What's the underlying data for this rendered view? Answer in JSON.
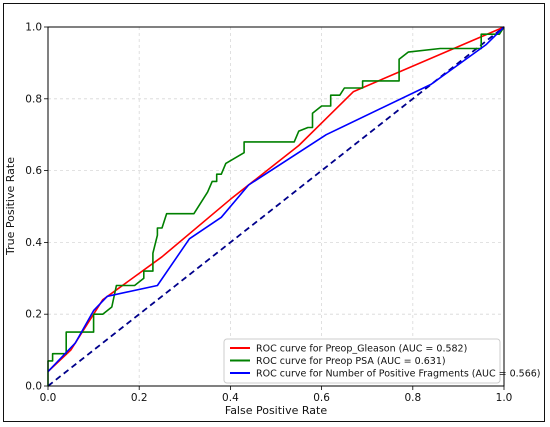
{
  "chart_data": {
    "type": "line",
    "title": "",
    "xlabel": "False Positive Rate",
    "ylabel": "True Positive Rate",
    "xlim": [
      0.0,
      1.0
    ],
    "ylim": [
      0.0,
      1.0
    ],
    "xticks": [
      "0.0",
      "0.2",
      "0.4",
      "0.6",
      "0.8",
      "1.0"
    ],
    "yticks": [
      "0.0",
      "0.2",
      "0.4",
      "0.6",
      "0.8",
      "1.0"
    ],
    "grid": true,
    "legend_position": "lower-right",
    "diagonal": {
      "x": [
        0.0,
        1.0
      ],
      "y": [
        0.0,
        1.0
      ],
      "color": "#00008b",
      "style": "dashed"
    },
    "series": [
      {
        "name": "ROC curve for Preop_Gleason (AUC = 0.582)",
        "color": "#ff0000",
        "points": [
          [
            0.0,
            0.04
          ],
          [
            0.05,
            0.1
          ],
          [
            0.12,
            0.24
          ],
          [
            0.25,
            0.36
          ],
          [
            0.4,
            0.52
          ],
          [
            0.55,
            0.67
          ],
          [
            0.67,
            0.82
          ],
          [
            1.0,
            1.0
          ]
        ]
      },
      {
        "name": "ROC curve for Preop PSA (AUC = 0.631)",
        "color": "#008000",
        "points": [
          [
            0.0,
            0.0
          ],
          [
            0.0,
            0.07
          ],
          [
            0.01,
            0.07
          ],
          [
            0.01,
            0.09
          ],
          [
            0.04,
            0.09
          ],
          [
            0.04,
            0.15
          ],
          [
            0.1,
            0.15
          ],
          [
            0.1,
            0.2
          ],
          [
            0.12,
            0.2
          ],
          [
            0.14,
            0.22
          ],
          [
            0.15,
            0.28
          ],
          [
            0.19,
            0.28
          ],
          [
            0.21,
            0.3
          ],
          [
            0.21,
            0.32
          ],
          [
            0.23,
            0.32
          ],
          [
            0.23,
            0.37
          ],
          [
            0.24,
            0.42
          ],
          [
            0.24,
            0.44
          ],
          [
            0.25,
            0.44
          ],
          [
            0.26,
            0.48
          ],
          [
            0.32,
            0.48
          ],
          [
            0.35,
            0.54
          ],
          [
            0.36,
            0.57
          ],
          [
            0.37,
            0.57
          ],
          [
            0.37,
            0.59
          ],
          [
            0.38,
            0.59
          ],
          [
            0.39,
            0.62
          ],
          [
            0.43,
            0.65
          ],
          [
            0.43,
            0.68
          ],
          [
            0.54,
            0.68
          ],
          [
            0.55,
            0.71
          ],
          [
            0.57,
            0.72
          ],
          [
            0.58,
            0.72
          ],
          [
            0.58,
            0.76
          ],
          [
            0.6,
            0.78
          ],
          [
            0.62,
            0.78
          ],
          [
            0.62,
            0.81
          ],
          [
            0.64,
            0.81
          ],
          [
            0.65,
            0.83
          ],
          [
            0.69,
            0.83
          ],
          [
            0.69,
            0.85
          ],
          [
            0.77,
            0.85
          ],
          [
            0.77,
            0.91
          ],
          [
            0.79,
            0.93
          ],
          [
            0.86,
            0.94
          ],
          [
            0.95,
            0.94
          ],
          [
            0.95,
            0.98
          ],
          [
            0.99,
            0.98
          ],
          [
            1.0,
            1.0
          ]
        ]
      },
      {
        "name": "ROC curve for Number of Positive Fragments (AUC = 0.566)",
        "color": "#0000ff",
        "points": [
          [
            0.0,
            0.04
          ],
          [
            0.06,
            0.12
          ],
          [
            0.1,
            0.21
          ],
          [
            0.13,
            0.25
          ],
          [
            0.24,
            0.28
          ],
          [
            0.31,
            0.41
          ],
          [
            0.38,
            0.47
          ],
          [
            0.44,
            0.56
          ],
          [
            0.61,
            0.7
          ],
          [
            0.84,
            0.84
          ],
          [
            0.96,
            0.95
          ],
          [
            1.0,
            1.0
          ]
        ]
      }
    ]
  }
}
